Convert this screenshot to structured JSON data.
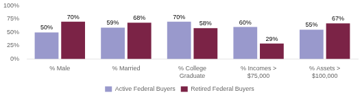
{
  "chart_data": {
    "type": "bar",
    "categories": [
      "% Male",
      "% Married",
      "% College\nGraduate",
      "% Incomes >\n$75,000",
      "% Assets >\n$100,000"
    ],
    "series": [
      {
        "name": "Active Federal Buyers",
        "color": "#9999cc",
        "values": [
          50,
          59,
          70,
          60,
          55
        ],
        "value_labels": [
          "50%",
          "59%",
          "70%",
          "60%",
          "55%"
        ]
      },
      {
        "name": "Retired Federal Buyers",
        "color": "#7b2346",
        "values": [
          70,
          68,
          58,
          29,
          67
        ],
        "value_labels": [
          "70%",
          "68%",
          "58%",
          "29%",
          "67%"
        ]
      }
    ],
    "ylim": [
      0,
      100
    ],
    "yticks": [
      {
        "value": 0,
        "label": "0%"
      },
      {
        "value": 25,
        "label": "25%"
      },
      {
        "value": 50,
        "label": "50%"
      },
      {
        "value": 75,
        "label": "75%"
      },
      {
        "value": 100,
        "label": "100%"
      }
    ],
    "grid": false,
    "legend": "bottom",
    "data_labels": true
  }
}
